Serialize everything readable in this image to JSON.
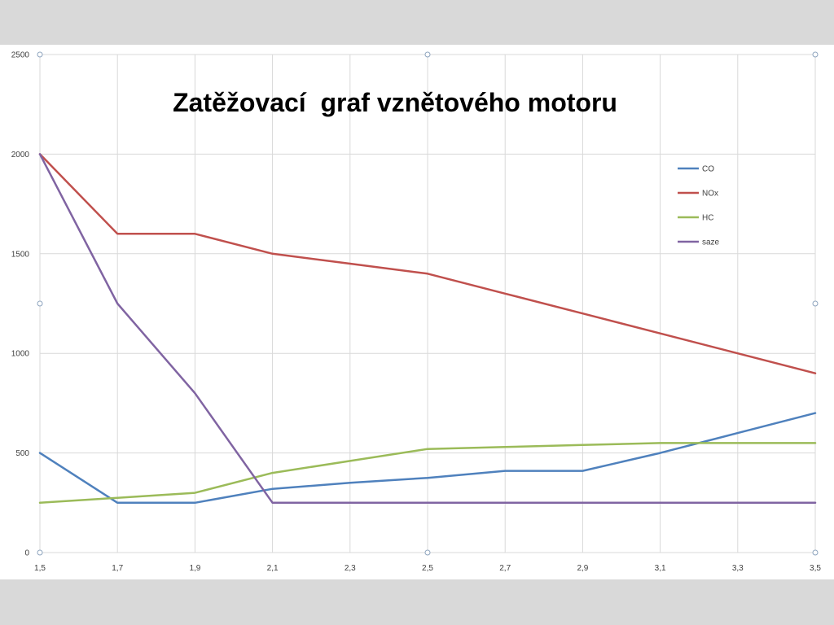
{
  "page": {
    "background": "#d9d9d9",
    "panel_background": "#ffffff",
    "handle_color": "#8ea4be"
  },
  "chart_data": {
    "type": "line",
    "title": "Zatěžovací  graf vznětového motoru",
    "categories": [
      "1,5",
      "1,7",
      "1,9",
      "2,1",
      "2,3",
      "2,5",
      "2,7",
      "2,9",
      "3,1",
      "3,3",
      "3,5"
    ],
    "ylim": [
      0,
      2500
    ],
    "yticks": [
      0,
      500,
      1000,
      1500,
      2000,
      2500
    ],
    "grid": true,
    "grid_color": "#d9d9d9",
    "legend": "top-right",
    "series": [
      {
        "name": "CO",
        "color": "#4f81bd",
        "values": [
          500,
          250,
          250,
          320,
          350,
          375,
          410,
          410,
          500,
          600,
          700
        ]
      },
      {
        "name": "NOx",
        "color": "#c0504d",
        "values": [
          2000,
          1600,
          1600,
          1500,
          1450,
          1400,
          1300,
          1200,
          1100,
          1000,
          900
        ]
      },
      {
        "name": "HC",
        "color": "#9bbb59",
        "values": [
          250,
          275,
          300,
          400,
          460,
          520,
          530,
          540,
          550,
          550,
          550
        ]
      },
      {
        "name": "saze",
        "color": "#8064a2",
        "values": [
          2000,
          1250,
          800,
          250,
          250,
          250,
          250,
          250,
          250,
          250,
          250
        ]
      }
    ]
  }
}
